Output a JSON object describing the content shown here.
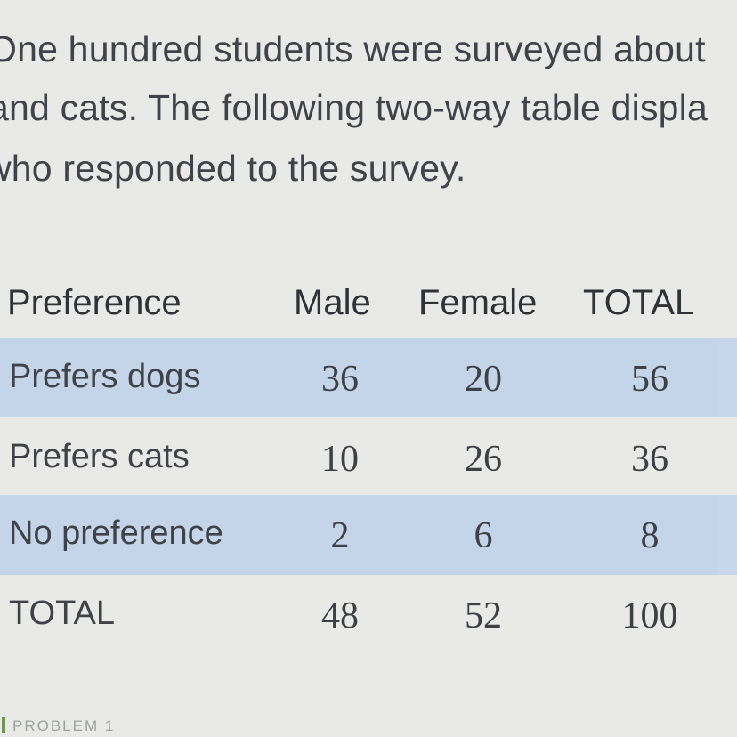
{
  "intro": {
    "line1": "One hundred students were surveyed about",
    "line2": "and cats. The following two-way table displa",
    "line3": "who responded to the survey."
  },
  "table": {
    "headers": [
      "Preference",
      "Male",
      "Female",
      "TOTAL"
    ],
    "rows": [
      [
        "Prefers dogs",
        "36",
        "20",
        "56"
      ],
      [
        "Prefers cats",
        "10",
        "26",
        "36"
      ],
      [
        "No preference",
        "2",
        "6",
        "8"
      ],
      [
        "TOTAL",
        "48",
        "52",
        "100"
      ]
    ],
    "band_color": "#c4d4e9"
  },
  "footer": {
    "label": "PROBLEM 1"
  }
}
